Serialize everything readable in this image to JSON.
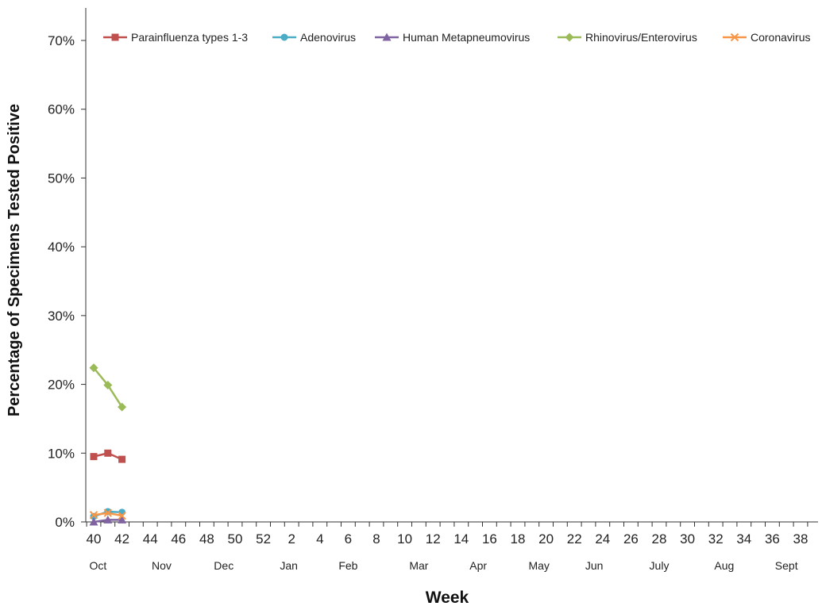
{
  "chart_data": {
    "type": "line",
    "title": "",
    "xlabel": "Week",
    "ylabel": "Percentage of Specimens Tested Positive",
    "ylim": [
      0,
      70
    ],
    "yticks": [
      0,
      10,
      20,
      30,
      40,
      50,
      60,
      70
    ],
    "ytick_suffix": "%",
    "x_week_ticks": [
      "40",
      "42",
      "44",
      "46",
      "48",
      "50",
      "52",
      "2",
      "4",
      "6",
      "8",
      "10",
      "12",
      "14",
      "16",
      "18",
      "20",
      "22",
      "24",
      "26",
      "28",
      "30",
      "32",
      "34",
      "36",
      "38"
    ],
    "months": [
      {
        "label": "Oct",
        "week_index": 0.3
      },
      {
        "label": "Nov",
        "week_index": 4.8
      },
      {
        "label": "Dec",
        "week_index": 9.2
      },
      {
        "label": "Jan",
        "week_index": 13.8
      },
      {
        "label": "Feb",
        "week_index": 18.0
      },
      {
        "label": "Mar",
        "week_index": 23.0
      },
      {
        "label": "Apr",
        "week_index": 27.2
      },
      {
        "label": "May",
        "week_index": 31.5
      },
      {
        "label": "Jun",
        "week_index": 35.4
      },
      {
        "label": "July",
        "week_index": 40.0
      },
      {
        "label": "Aug",
        "week_index": 44.6
      },
      {
        "label": "Sept",
        "week_index": 49.0
      }
    ],
    "grid": false,
    "legend_position": "top",
    "x": [
      "40",
      "41",
      "42"
    ],
    "series": [
      {
        "name": "Parainfluenza types 1-3",
        "values": [
          9.5,
          10.0,
          9.1
        ],
        "color": "#c0504d",
        "marker": "square"
      },
      {
        "name": "Adenovirus",
        "values": [
          0.8,
          1.5,
          1.4
        ],
        "color": "#4bacc6",
        "marker": "circle"
      },
      {
        "name": "Human Metapneumovirus",
        "values": [
          0.0,
          0.3,
          0.3
        ],
        "color": "#8064a2",
        "marker": "triangle"
      },
      {
        "name": "Rhinovirus/Enterovirus",
        "values": [
          22.4,
          19.9,
          16.7
        ],
        "color": "#9bbb59",
        "marker": "diamond"
      },
      {
        "name": "Coronavirus",
        "values": [
          1.0,
          1.3,
          0.9
        ],
        "color": "#f79646",
        "marker": "x"
      }
    ]
  }
}
